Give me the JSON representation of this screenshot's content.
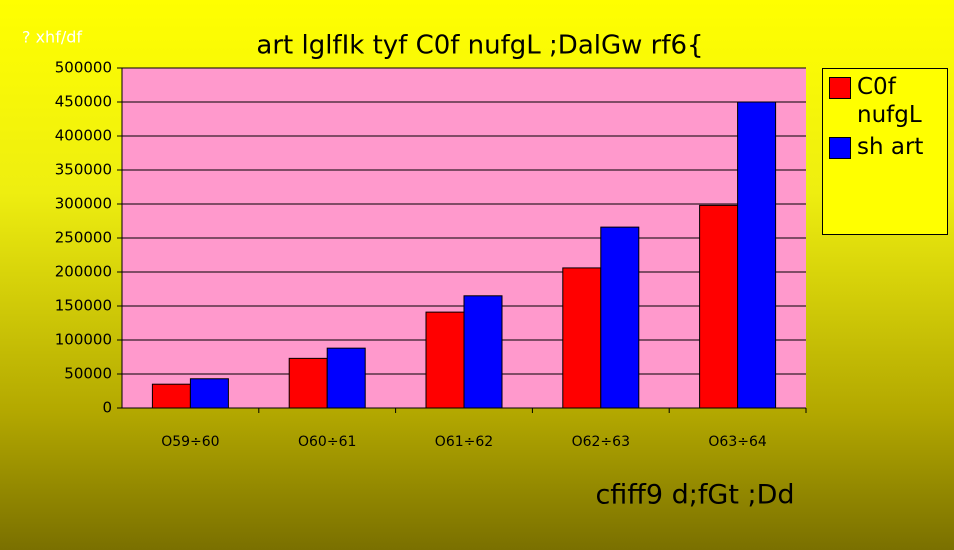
{
  "chart_data": {
    "type": "bar",
    "title": "art lglfIk tyf C0f nufgL ;DalGw rf6{",
    "y_label": "? xhf/df",
    "x_label": "cfiff9 d;fGt ;Dd",
    "categories": [
      "O59÷60",
      "O60÷61",
      "O61÷62",
      "O62÷63",
      "O63÷64"
    ],
    "series": [
      {
        "name": "C0f nufgL",
        "color": "#ff0000",
        "values": [
          35000,
          73000,
          141000,
          206000,
          298000
        ]
      },
      {
        "name": "sh art",
        "color": "#0000ff",
        "values": [
          43000,
          88000,
          165000,
          266000,
          450000
        ]
      }
    ],
    "ylim": [
      0,
      500000
    ],
    "yticks": [
      0,
      50000,
      100000,
      150000,
      200000,
      250000,
      300000,
      350000,
      400000,
      450000,
      500000
    ],
    "grid": true,
    "legend": "right"
  }
}
